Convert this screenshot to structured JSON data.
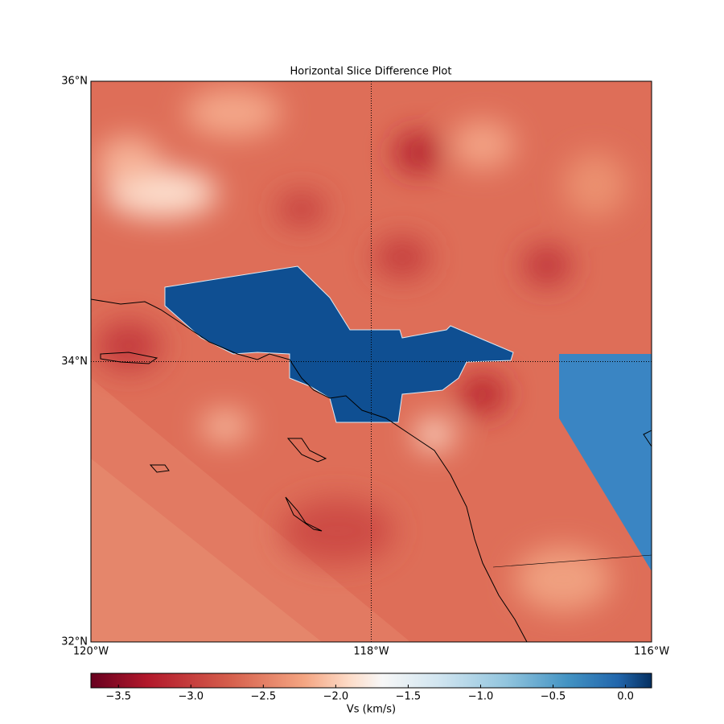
{
  "chart_data": {
    "type": "map",
    "title": "Horizontal Slice Difference Plot",
    "xlim": [
      -120,
      -116
    ],
    "ylim": [
      32,
      36
    ],
    "xticks": [
      {
        "value": -120,
        "label": "120°W"
      },
      {
        "value": -118,
        "label": "118°W"
      },
      {
        "value": -116,
        "label": "116°W"
      }
    ],
    "yticks": [
      {
        "value": 32,
        "label": "32°N"
      },
      {
        "value": 34,
        "label": "34°N"
      },
      {
        "value": 36,
        "label": "36°N"
      }
    ],
    "grid": true,
    "colorbar": {
      "label": "Vs (km/s)",
      "clim": [
        -3.69,
        0.18
      ],
      "ticks": [
        {
          "value": -3.5,
          "label": "−3.5"
        },
        {
          "value": -3.0,
          "label": "−3.0"
        },
        {
          "value": -2.5,
          "label": "−2.5"
        },
        {
          "value": -2.0,
          "label": "−2.0"
        },
        {
          "value": -1.5,
          "label": "−1.5"
        },
        {
          "value": -1.0,
          "label": "−1.0"
        },
        {
          "value": -0.5,
          "label": "−0.5"
        },
        {
          "value": 0.0,
          "label": "0.0"
        }
      ]
    }
  }
}
